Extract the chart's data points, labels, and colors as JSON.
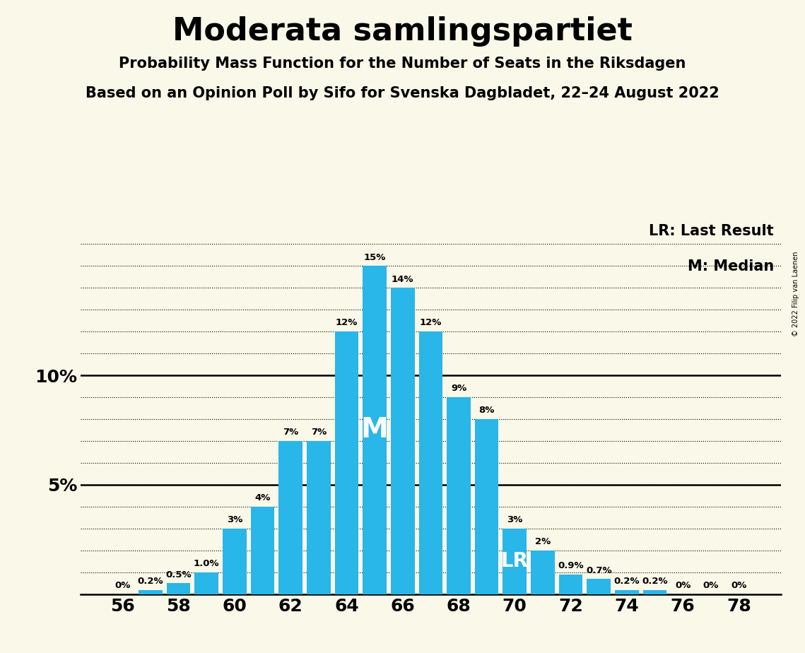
{
  "title": "Moderata samlingspartiet",
  "subtitle1": "Probability Mass Function for the Number of Seats in the Riksdagen",
  "subtitle2": "Based on an Opinion Poll by Sifo for Svenska Dagbladet, 22–24 August 2022",
  "copyright": "© 2022 Filip van Laenen",
  "legend1": "LR: Last Result",
  "legend2": "M: Median",
  "background_color": "#faf8e8",
  "bar_color": "#29b6e8",
  "seats": [
    56,
    57,
    58,
    59,
    60,
    61,
    62,
    63,
    64,
    65,
    66,
    67,
    68,
    69,
    70,
    71,
    72,
    73,
    74,
    75,
    76,
    77,
    78
  ],
  "probabilities": [
    0.0,
    0.2,
    0.5,
    1.0,
    3.0,
    4.0,
    7.0,
    7.0,
    12.0,
    15.0,
    14.0,
    12.0,
    9.0,
    8.0,
    3.0,
    2.0,
    0.9,
    0.7,
    0.2,
    0.2,
    0.0,
    0.0,
    0.0
  ],
  "labels": [
    "0%",
    "0.2%",
    "0.5%",
    "1.0%",
    "3%",
    "4%",
    "7%",
    "7%",
    "12%",
    "15%",
    "14%",
    "12%",
    "9%",
    "8%",
    "3%",
    "2%",
    "0.9%",
    "0.7%",
    "0.2%",
    "0.2%",
    "0%",
    "0%",
    "0%"
  ],
  "median_seat": 65,
  "lr_seat": 70,
  "xlim": [
    54.5,
    79.5
  ],
  "ylim": [
    0,
    17
  ]
}
